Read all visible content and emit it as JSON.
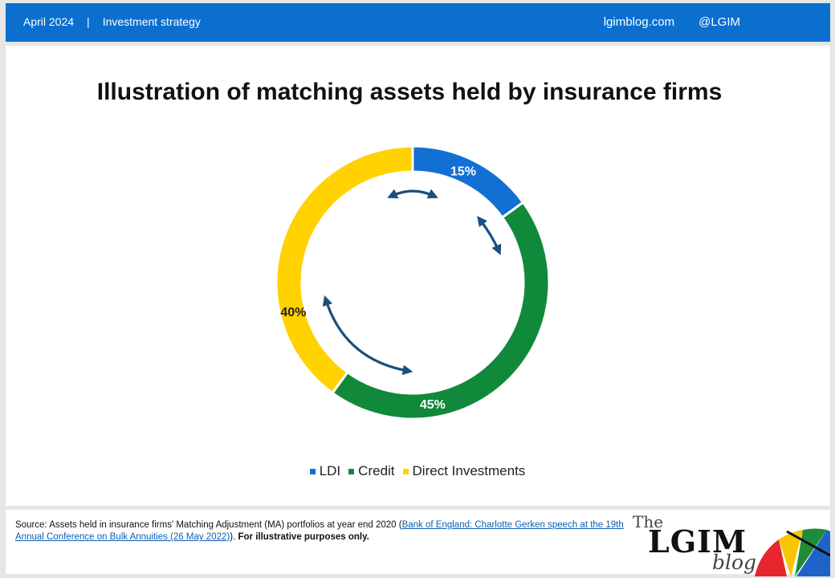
{
  "header": {
    "date": "April 2024",
    "separator": "|",
    "section": "Investment strategy",
    "site": "lgimblog.com",
    "handle": "@LGIM"
  },
  "chart_data": {
    "type": "pie",
    "variant": "donut",
    "title": "Illustration of matching assets held by insurance firms",
    "categories": [
      "LDI",
      "Credit",
      "Direct Investments"
    ],
    "values": [
      15,
      45,
      40
    ],
    "data_labels": [
      "15%",
      "45%",
      "40%"
    ],
    "colors": [
      "#1270d4",
      "#11893a",
      "#ffd200"
    ],
    "legend_position": "bottom",
    "annotations": "double-headed arrows between segments"
  },
  "legend": [
    {
      "label": "LDI",
      "color": "#1270d4"
    },
    {
      "label": "Credit",
      "color": "#11893a"
    },
    {
      "label": "Direct Investments",
      "color": "#ffd200"
    }
  ],
  "footer": {
    "source_prefix": "Source: Assets held in insurance firms' Matching Adjustment (MA) portfolios at year end 2020 (",
    "source_link": "Bank of England: Charlotte Gerken speech at the 19th Annual Conference on Bulk Annuities (26 May 2022)",
    "source_suffix": ". ",
    "disclaimer": "For illustrative purposes only."
  },
  "logo": {
    "the": "The",
    "lgim": "LGIM",
    "blog": "blog"
  },
  "colors": {
    "header_bg": "#0b6fd0",
    "arrow": "#1b4f7c"
  }
}
